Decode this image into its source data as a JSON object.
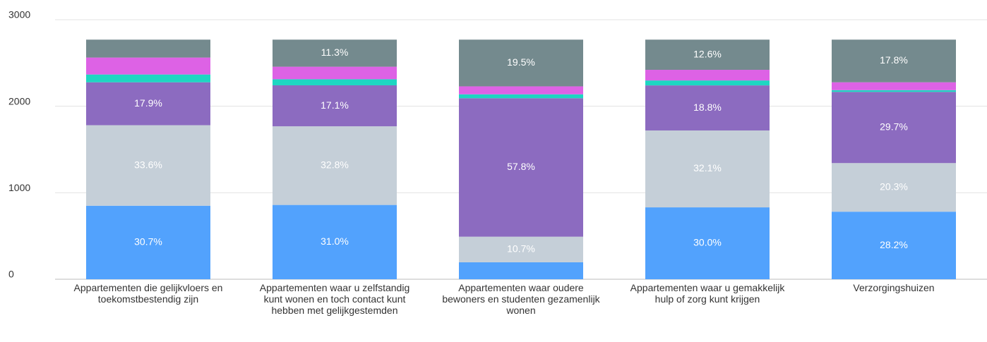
{
  "chart_data": {
    "type": "stacked_bar",
    "categories": [
      "Appartementen die gelijkvloers en toekomstbestendig zijn",
      "Appartementen waar u zelfstandig kunt wonen en toch contact kunt hebben met gelijkgestemden",
      "Appartementen waar oudere bewoners en studenten gezamenlijk wonen",
      "Appartementen waar u gemakkelijk hulp of zorg kunt krijgen",
      "Verzorgingshuizen"
    ],
    "series": [
      {
        "color": "#52a2fd",
        "values": [
          850,
          859,
          196,
          831,
          781
        ],
        "value_labels": [
          "30.7%",
          "31.0%",
          null,
          "30.0%",
          "28.2%"
        ]
      },
      {
        "color": "#c5cfd8",
        "values": [
          931,
          909,
          296,
          889,
          562
        ],
        "value_labels": [
          "33.6%",
          "32.8%",
          "10.7%",
          "32.1%",
          "20.3%"
        ]
      },
      {
        "color": "#8c6bc0",
        "values": [
          496,
          474,
          1601,
          521,
          823
        ],
        "value_labels": [
          "17.9%",
          "17.1%",
          "57.8%",
          "18.8%",
          "29.7%"
        ]
      },
      {
        "color": "#1ed6c2",
        "values": [
          90,
          70,
          45,
          57,
          20
        ],
        "value_labels": [
          null,
          null,
          null,
          null,
          null
        ]
      },
      {
        "color": "#dd62e5",
        "values": [
          196,
          145,
          92,
          123,
          91
        ],
        "value_labels": [
          null,
          null,
          null,
          null,
          null
        ]
      },
      {
        "color": "#748a8e",
        "values": [
          207,
          313,
          540,
          349,
          493
        ],
        "value_labels": [
          null,
          "11.3%",
          "19.5%",
          "12.6%",
          "17.8%"
        ]
      }
    ],
    "ylim": [
      0,
      3000
    ],
    "yticks": [
      0,
      1000,
      2000,
      3000
    ],
    "grid": true
  }
}
